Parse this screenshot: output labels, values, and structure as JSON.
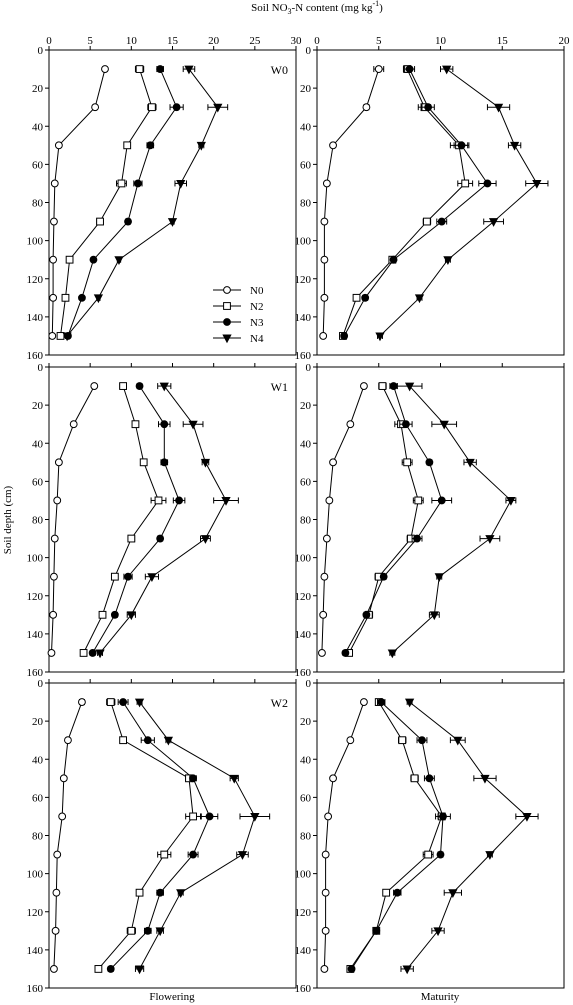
{
  "figure": {
    "top_axis_title_main": "Soil NO",
    "top_axis_title_sub": "3",
    "top_axis_title_rest": "-N content (mg kg",
    "top_axis_title_sup": "-1",
    "top_axis_title_close": ")",
    "y_axis_title": "Soil depth (cm)",
    "left_column_label": "Flowering",
    "right_column_label": "Maturity",
    "legend": [
      {
        "name": "N0",
        "marker": "circle-open"
      },
      {
        "name": "N2",
        "marker": "square-open"
      },
      {
        "name": "N3",
        "marker": "circle-filled"
      },
      {
        "name": "N4",
        "marker": "triangle-down-filled"
      }
    ]
  },
  "chart_data": [
    {
      "type": "line",
      "panel": "W0 Flowering",
      "label": "W0",
      "xlim": [
        0,
        30
      ],
      "xticks": [
        0,
        5,
        10,
        15,
        20,
        25,
        30
      ],
      "ylim": [
        0,
        160
      ],
      "yticks": [
        0,
        20,
        40,
        60,
        80,
        100,
        120,
        140,
        160
      ],
      "depth": [
        10,
        30,
        50,
        70,
        90,
        110,
        130,
        150
      ],
      "series": [
        {
          "name": "N0",
          "values": [
            6.8,
            5.6,
            1.2,
            0.7,
            0.6,
            0.5,
            0.5,
            0.4
          ],
          "err": [
            0,
            0,
            0,
            0,
            0,
            0,
            0,
            0
          ]
        },
        {
          "name": "N2",
          "values": [
            11.0,
            12.5,
            9.5,
            8.8,
            6.2,
            2.5,
            2.0,
            1.4
          ],
          "err": [
            0.5,
            0.5,
            0.3,
            0.6,
            0.4,
            0.2,
            0.2,
            0.2
          ]
        },
        {
          "name": "N3",
          "values": [
            13.5,
            15.5,
            12.3,
            10.8,
            9.6,
            5.4,
            4.0,
            2.3
          ],
          "err": [
            0.4,
            0.8,
            0.4,
            0.5,
            0.3,
            0.2,
            0.2,
            0.2
          ]
        },
        {
          "name": "N4",
          "values": [
            17.0,
            20.5,
            18.5,
            16.0,
            15.0,
            8.5,
            6.0,
            2.2
          ],
          "err": [
            0.7,
            1.2,
            0.3,
            0.7,
            0.2,
            0.2,
            0.2,
            0.2
          ]
        }
      ]
    },
    {
      "type": "line",
      "panel": "W0 Maturity",
      "label": "",
      "xlim": [
        0,
        20
      ],
      "xticks": [
        0,
        5,
        10,
        15,
        20
      ],
      "ylim": [
        0,
        160
      ],
      "yticks": [
        0,
        20,
        40,
        60,
        80,
        100,
        120,
        140,
        160
      ],
      "depth": [
        10,
        30,
        50,
        70,
        90,
        110,
        130,
        150
      ],
      "series": [
        {
          "name": "N0",
          "values": [
            5.0,
            4.0,
            1.3,
            0.8,
            0.6,
            0.6,
            0.6,
            0.5
          ],
          "err": [
            0.4,
            0.2,
            0,
            0,
            0,
            0,
            0,
            0
          ]
        },
        {
          "name": "N2",
          "values": [
            7.3,
            8.7,
            11.5,
            12.0,
            8.9,
            6.1,
            3.2,
            2.1
          ],
          "err": [
            0.3,
            0.5,
            0.7,
            0.6,
            0.3,
            0.2,
            0.2,
            0.2
          ]
        },
        {
          "name": "N3",
          "values": [
            7.5,
            9.0,
            11.7,
            13.8,
            10.1,
            6.2,
            3.9,
            2.2
          ],
          "err": [
            0.4,
            0.5,
            0.6,
            0.7,
            0.4,
            0.2,
            0.2,
            0.2
          ]
        },
        {
          "name": "N4",
          "values": [
            10.5,
            14.7,
            16.0,
            17.8,
            14.3,
            10.6,
            8.3,
            5.1
          ],
          "err": [
            0.5,
            0.9,
            0.5,
            0.9,
            0.8,
            0.2,
            0.2,
            0.2
          ]
        }
      ]
    },
    {
      "type": "line",
      "panel": "W1 Flowering",
      "label": "W1",
      "xlim": [
        0,
        30
      ],
      "xticks": [
        0,
        5,
        10,
        15,
        20,
        25,
        30
      ],
      "ylim": [
        0,
        160
      ],
      "yticks": [
        0,
        20,
        40,
        60,
        80,
        100,
        120,
        140,
        160
      ],
      "depth": [
        10,
        30,
        50,
        70,
        90,
        110,
        130,
        150
      ],
      "series": [
        {
          "name": "N0",
          "values": [
            5.5,
            3.0,
            1.2,
            1.0,
            0.7,
            0.6,
            0.5,
            0.3
          ],
          "err": [
            0,
            0,
            0,
            0,
            0,
            0,
            0,
            0
          ]
        },
        {
          "name": "N2",
          "values": [
            9.0,
            10.5,
            11.5,
            13.3,
            10.0,
            8.0,
            6.5,
            4.2
          ],
          "err": [
            0.4,
            0.3,
            0.3,
            0.9,
            0.4,
            0.3,
            0.3,
            0.3
          ]
        },
        {
          "name": "N3",
          "values": [
            11.0,
            14.0,
            14.0,
            15.8,
            13.5,
            9.6,
            8.0,
            5.3
          ],
          "err": [
            0.3,
            0.7,
            0.4,
            0.7,
            0.3,
            0.5,
            0.3,
            0.3
          ]
        },
        {
          "name": "N4",
          "values": [
            14.0,
            17.5,
            19.0,
            21.5,
            19.0,
            12.5,
            10.0,
            6.2
          ],
          "err": [
            0.8,
            1.2,
            0.4,
            1.5,
            0.6,
            0.8,
            0.5,
            0.3
          ]
        }
      ]
    },
    {
      "type": "line",
      "panel": "W1 Maturity",
      "label": "",
      "xlim": [
        0,
        20
      ],
      "xticks": [
        0,
        5,
        10,
        15,
        20
      ],
      "ylim": [
        0,
        160
      ],
      "yticks": [
        0,
        20,
        40,
        60,
        80,
        100,
        120,
        140,
        160
      ],
      "depth": [
        10,
        30,
        50,
        70,
        90,
        110,
        130,
        150
      ],
      "series": [
        {
          "name": "N0",
          "values": [
            3.8,
            2.7,
            1.3,
            1.0,
            0.8,
            0.6,
            0.5,
            0.4
          ],
          "err": [
            0,
            0,
            0,
            0,
            0,
            0,
            0,
            0
          ]
        },
        {
          "name": "N2",
          "values": [
            5.3,
            6.8,
            7.3,
            8.2,
            7.6,
            5.0,
            4.2,
            2.6
          ],
          "err": [
            0.3,
            0.5,
            0.4,
            0.4,
            0.3,
            0.3,
            0.3,
            0.2
          ]
        },
        {
          "name": "N3",
          "values": [
            6.2,
            7.2,
            9.1,
            10.1,
            8.1,
            5.4,
            4.0,
            2.3
          ],
          "err": [
            0.3,
            0.5,
            0.2,
            0.8,
            0.4,
            0.2,
            0.2,
            0.2
          ]
        },
        {
          "name": "N4",
          "values": [
            7.5,
            10.3,
            12.4,
            15.7,
            14.0,
            9.9,
            9.5,
            6.1
          ],
          "err": [
            1.0,
            1.0,
            0.5,
            0.4,
            0.8,
            0.2,
            0.4,
            0.2
          ]
        }
      ]
    },
    {
      "type": "line",
      "panel": "W2 Flowering",
      "label": "W2",
      "xlim": [
        0,
        30
      ],
      "xticks": [
        0,
        5,
        10,
        15,
        20,
        25,
        30
      ],
      "ylim": [
        0,
        160
      ],
      "yticks": [
        0,
        20,
        40,
        60,
        80,
        100,
        120,
        140,
        160
      ],
      "depth": [
        10,
        30,
        50,
        70,
        90,
        110,
        130,
        150
      ],
      "series": [
        {
          "name": "N0",
          "values": [
            4.0,
            2.3,
            1.8,
            1.6,
            1.0,
            0.9,
            0.8,
            0.6
          ],
          "err": [
            0.3,
            0,
            0,
            0,
            0,
            0,
            0,
            0
          ]
        },
        {
          "name": "N2",
          "values": [
            7.5,
            9.0,
            17.0,
            17.5,
            14.0,
            11.0,
            10.0,
            6.0
          ],
          "err": [
            0.5,
            0.3,
            0.4,
            0.9,
            0.8,
            0.3,
            0.5,
            0.3
          ]
        },
        {
          "name": "N3",
          "values": [
            9.0,
            12.0,
            17.5,
            19.5,
            17.5,
            13.5,
            12.0,
            7.5
          ],
          "err": [
            0.6,
            0.8,
            0.4,
            1.0,
            0.6,
            0.4,
            0.4,
            0.3
          ]
        },
        {
          "name": "N4",
          "values": [
            11.0,
            14.5,
            22.5,
            25.0,
            23.5,
            16.0,
            13.5,
            11.0
          ],
          "err": [
            0.3,
            0.3,
            0.5,
            1.8,
            0.7,
            0.3,
            0.4,
            0.5
          ]
        }
      ]
    },
    {
      "type": "line",
      "panel": "W2 Maturity",
      "label": "",
      "xlim": [
        0,
        20
      ],
      "xticks": [
        0,
        5,
        10,
        15,
        20
      ],
      "ylim": [
        0,
        160
      ],
      "yticks": [
        0,
        20,
        40,
        60,
        80,
        100,
        120,
        140,
        160
      ],
      "depth": [
        10,
        30,
        50,
        70,
        90,
        110,
        130,
        150
      ],
      "series": [
        {
          "name": "N0",
          "values": [
            3.8,
            2.7,
            1.3,
            0.9,
            0.7,
            0.7,
            0.7,
            0.6
          ],
          "err": [
            0,
            0,
            0,
            0,
            0,
            0,
            0,
            0
          ]
        },
        {
          "name": "N2",
          "values": [
            5.0,
            6.9,
            7.9,
            10.1,
            9.0,
            5.6,
            4.8,
            2.7
          ],
          "err": [
            0.2,
            0.3,
            0.3,
            0.3,
            0.4,
            0.2,
            0.2,
            0.2
          ]
        },
        {
          "name": "N3",
          "values": [
            5.2,
            8.5,
            9.1,
            10.2,
            10.0,
            6.5,
            4.8,
            2.8
          ],
          "err": [
            0.3,
            0.4,
            0.4,
            0.6,
            0.2,
            0.3,
            0.2,
            0.2
          ]
        },
        {
          "name": "N4",
          "values": [
            7.5,
            11.4,
            13.6,
            17.0,
            14.0,
            11.0,
            9.8,
            7.3
          ],
          "err": [
            0.2,
            0.6,
            0.9,
            0.9,
            0.2,
            0.7,
            0.5,
            0.5
          ]
        }
      ]
    }
  ]
}
